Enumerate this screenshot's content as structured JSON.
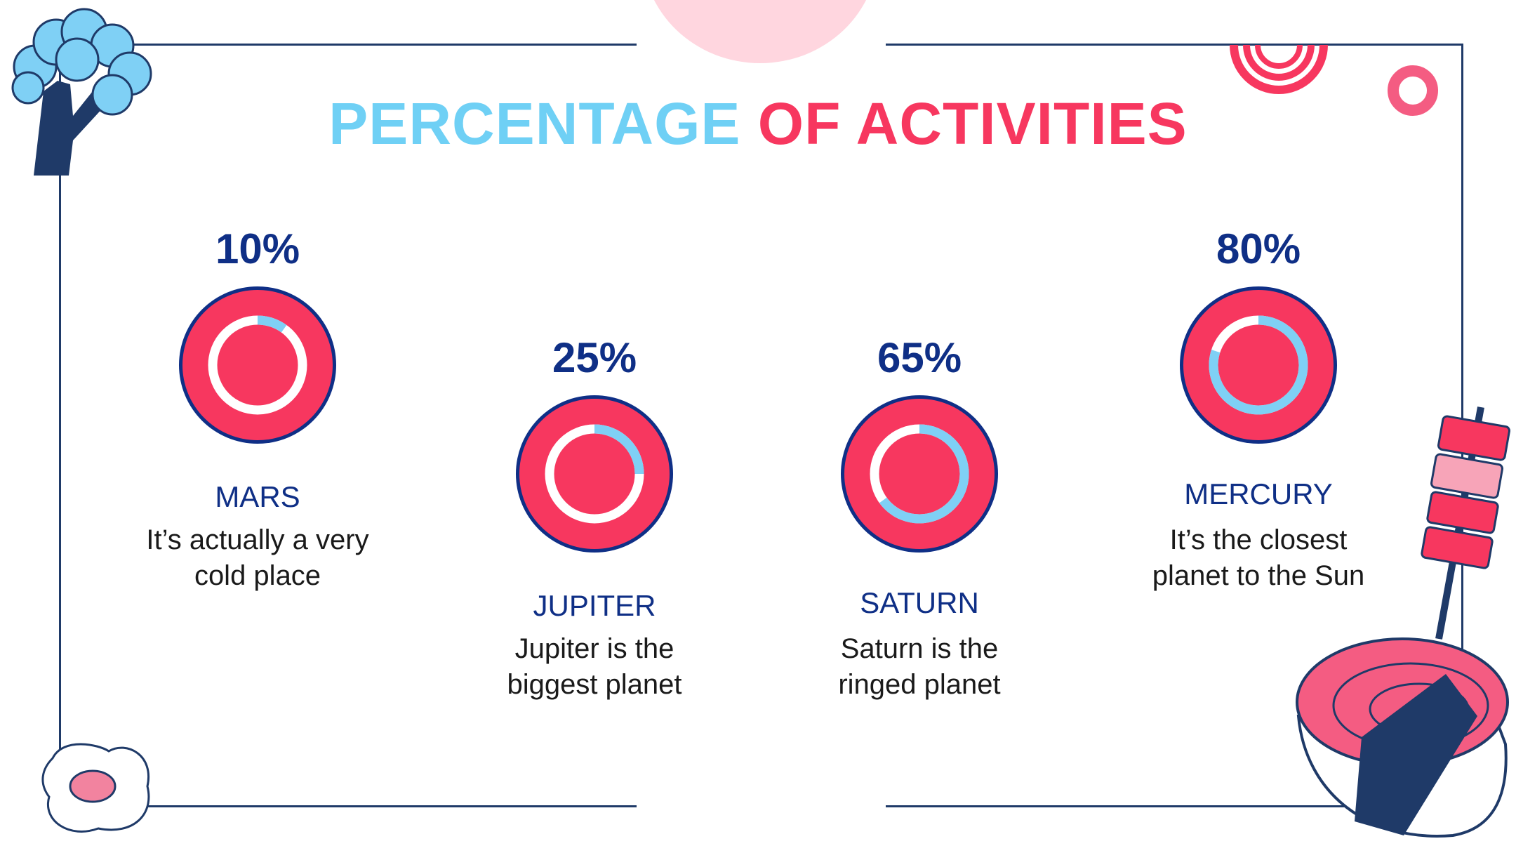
{
  "title": {
    "part1": "PERCENTAGE",
    "part2": "OF ACTIVITIES"
  },
  "colors": {
    "title_cyan": "#6fd0f5",
    "title_red": "#f7375f",
    "navy": "#0f2f86",
    "disc": "#f7375f",
    "ring_track": "#ffffff",
    "ring_progress": "#7fd0f5"
  },
  "chart_data": {
    "type": "pie",
    "categories": [
      "MARS",
      "JUPITER",
      "SATURN",
      "MERCURY"
    ],
    "values": [
      10,
      25,
      65,
      80
    ],
    "unit": "%"
  },
  "items": [
    {
      "percent": "10%",
      "value": 10,
      "name": "MARS",
      "desc1": "It’s actually a very",
      "desc2": "cold place"
    },
    {
      "percent": "25%",
      "value": 25,
      "name": "JUPITER",
      "desc1": "Jupiter is the",
      "desc2": "biggest planet"
    },
    {
      "percent": "65%",
      "value": 65,
      "name": "SATURN",
      "desc1": "Saturn is the",
      "desc2": "ringed planet"
    },
    {
      "percent": "80%",
      "value": 80,
      "name": "MERCURY",
      "desc1": "It’s the closest",
      "desc2": "planet to the Sun"
    }
  ]
}
